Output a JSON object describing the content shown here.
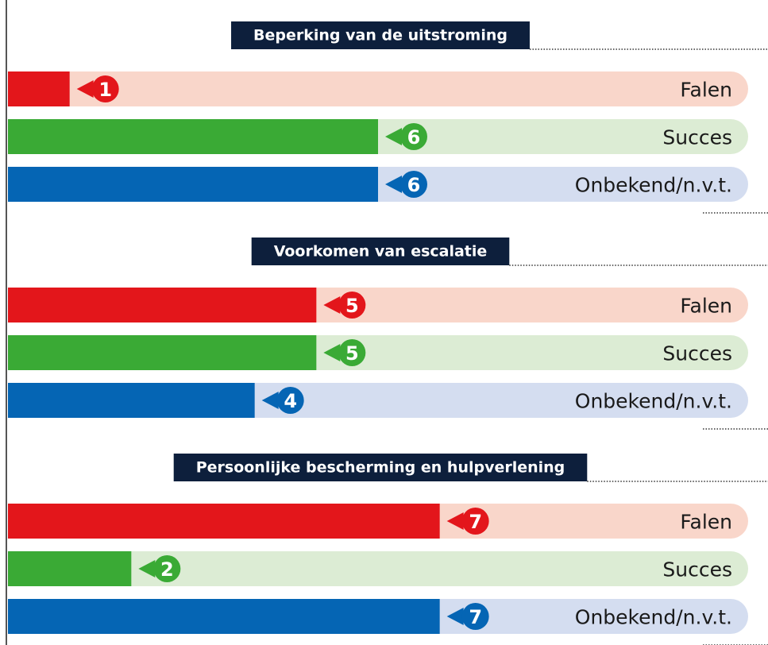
{
  "chart_data": [
    {
      "type": "bar",
      "orientation": "horizontal",
      "title": "Beperking van de uitstroming",
      "categories": [
        "Falen",
        "Succes",
        "Onbekend/n.v.t."
      ],
      "values": [
        1,
        6,
        6
      ],
      "colors": [
        "#e3161b",
        "#3aaa35",
        "#0565b4"
      ],
      "track_colors": [
        "#f9d6ca",
        "#dcecd4",
        "#d4ddf0"
      ],
      "xlim": [
        0,
        12
      ]
    },
    {
      "type": "bar",
      "orientation": "horizontal",
      "title": "Voorkomen van escalatie",
      "categories": [
        "Falen",
        "Succes",
        "Onbekend/n.v.t."
      ],
      "values": [
        5,
        5,
        4
      ],
      "colors": [
        "#e3161b",
        "#3aaa35",
        "#0565b4"
      ],
      "track_colors": [
        "#f9d6ca",
        "#dcecd4",
        "#d4ddf0"
      ],
      "xlim": [
        0,
        12
      ]
    },
    {
      "type": "bar",
      "orientation": "horizontal",
      "title": "Persoonlijke bescherming en hulpverlening",
      "categories": [
        "Falen",
        "Succes",
        "Onbekend/n.v.t."
      ],
      "values": [
        7,
        2,
        7
      ],
      "colors": [
        "#e3161b",
        "#3aaa35",
        "#0565b4"
      ],
      "track_colors": [
        "#f9d6ca",
        "#dcecd4",
        "#d4ddf0"
      ],
      "xlim": [
        0,
        12
      ]
    }
  ]
}
